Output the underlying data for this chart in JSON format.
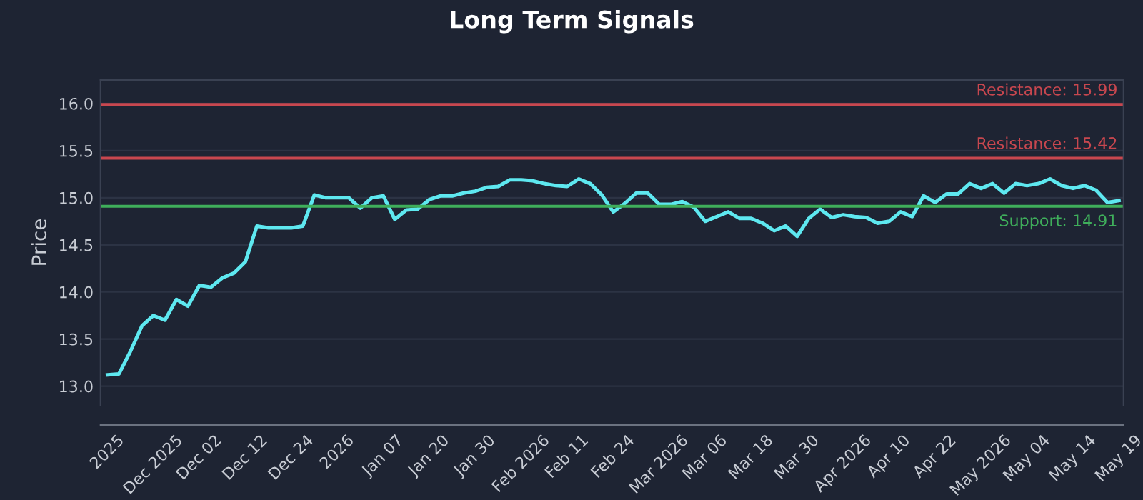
{
  "chart_data": {
    "type": "line",
    "title": "Long Term Signals",
    "ylabel": "Price",
    "categories": [
      "2025",
      null,
      null,
      null,
      "Dec 2025",
      null,
      null,
      null,
      "Dec 02",
      null,
      null,
      null,
      "Dec 12",
      null,
      null,
      null,
      "Dec 24",
      null,
      null,
      null,
      "2026",
      null,
      null,
      null,
      "Jan 07",
      null,
      null,
      null,
      "Jan 20",
      null,
      null,
      null,
      "Jan 30",
      null,
      null,
      null,
      "Feb 2026",
      null,
      null,
      null,
      "Feb 11",
      null,
      null,
      null,
      "Feb 24",
      null,
      null,
      null,
      "Mar 2026",
      null,
      null,
      null,
      "Mar 06",
      null,
      null,
      null,
      "Mar 18",
      null,
      null,
      null,
      "Mar 30",
      null,
      null,
      null,
      "Apr 2026",
      null,
      null,
      null,
      "Apr 10",
      null,
      null,
      null,
      "Apr 22",
      null,
      null,
      null,
      "May 2026",
      null,
      null,
      null,
      "May 04",
      null,
      null,
      null,
      "May 14",
      null,
      null,
      null,
      "May 19"
    ],
    "series": [
      {
        "color": "#5ee8f0",
        "values": [
          13.12,
          13.13,
          13.37,
          13.64,
          13.75,
          13.7,
          13.92,
          13.85,
          14.07,
          14.05,
          14.15,
          14.2,
          14.32,
          14.7,
          14.68,
          14.68,
          14.68,
          14.7,
          15.03,
          15.0,
          15.0,
          15.0,
          14.89,
          15.0,
          15.02,
          14.77,
          14.87,
          14.88,
          14.98,
          15.02,
          15.02,
          15.05,
          15.07,
          15.11,
          15.12,
          15.19,
          15.19,
          15.18,
          15.15,
          15.13,
          15.12,
          15.2,
          15.15,
          15.03,
          14.85,
          14.94,
          15.05,
          15.05,
          14.93,
          14.93,
          14.96,
          14.9,
          14.75,
          14.8,
          14.85,
          14.78,
          14.78,
          14.73,
          14.65,
          14.7,
          14.59,
          14.78,
          14.88,
          14.79,
          14.82,
          14.8,
          14.79,
          14.73,
          14.75,
          14.85,
          14.8,
          15.02,
          14.95,
          15.04,
          15.04,
          15.15,
          15.1,
          15.15,
          15.05,
          15.15,
          15.13,
          15.15,
          15.2,
          15.13,
          15.1,
          15.13,
          15.08,
          14.95,
          14.97
        ]
      }
    ],
    "ylim": [
      12.8,
      16.25
    ],
    "yticks": [
      {
        "value": 13,
        "label": "13.0"
      },
      13.5,
      {
        "value": 14,
        "label": "14.0"
      },
      14.5,
      {
        "value": 15,
        "label": "15.0"
      },
      15.5,
      {
        "value": 16,
        "label": "16.0"
      }
    ],
    "ref_lines": [
      {
        "axis": "y",
        "value": 15.99,
        "label": "Resistance: 15.99",
        "color": "#c8474f"
      },
      {
        "axis": "y",
        "value": 15.42,
        "label": "Resistance: 15.42",
        "color": "#c8474f"
      },
      {
        "axis": "y",
        "value": 14.91,
        "label": "Support: 14.91",
        "color": "#3fae5b"
      }
    ],
    "grid": "y",
    "legend": false
  }
}
